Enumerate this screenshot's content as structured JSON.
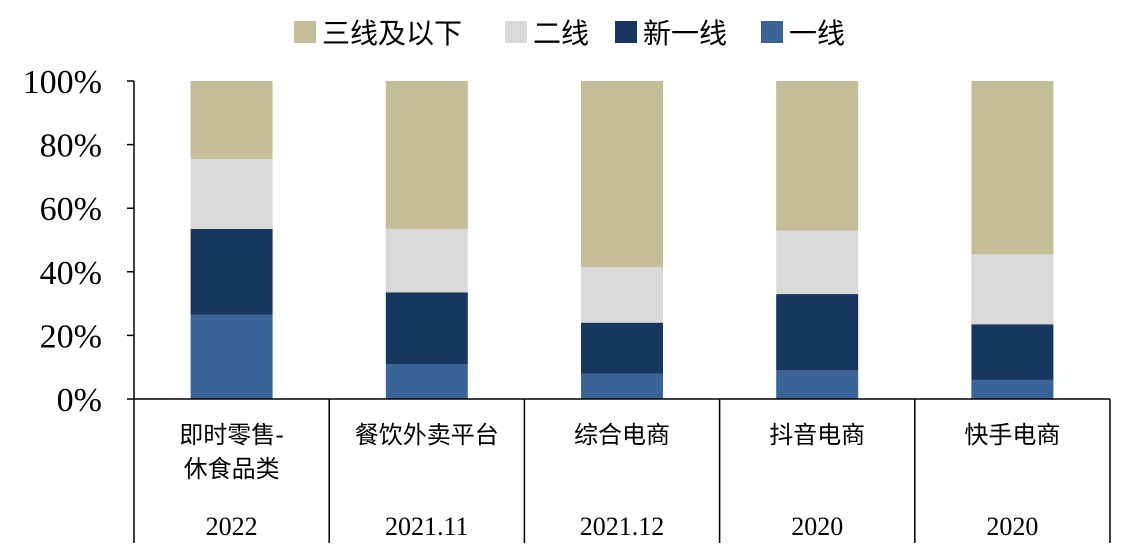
{
  "chart_data": {
    "type": "bar",
    "stacked": true,
    "percent": true,
    "ylim": [
      0,
      100
    ],
    "y_ticks": [
      "0%",
      "20%",
      "40%",
      "60%",
      "80%",
      "100%"
    ],
    "categories": [
      {
        "label_lines": [
          "即时零售-",
          "休食品类"
        ],
        "year": "2022"
      },
      {
        "label_lines": [
          "餐饮外卖平台"
        ],
        "year": "2021.11"
      },
      {
        "label_lines": [
          "综合电商"
        ],
        "year": "2021.12"
      },
      {
        "label_lines": [
          "抖音电商"
        ],
        "year": "2020"
      },
      {
        "label_lines": [
          "快手电商"
        ],
        "year": "2020"
      }
    ],
    "series": [
      {
        "name": "一线",
        "color": "#3a6398",
        "values": [
          26.5,
          11,
          8,
          9,
          6
        ]
      },
      {
        "name": "新一线",
        "color": "#17375e",
        "values": [
          27,
          22.5,
          16,
          24,
          17.5
        ]
      },
      {
        "name": "二线",
        "color": "#d9d9d9",
        "values": [
          22,
          20,
          17.5,
          20,
          22
        ]
      },
      {
        "name": "三线及以下",
        "color": "#c4bd97",
        "values": [
          24.5,
          46.5,
          58.5,
          47,
          54.5
        ]
      }
    ],
    "legend_order": [
      "三线及以下",
      "二线",
      "新一线",
      "一线"
    ],
    "legend_position": "top",
    "grid": false
  }
}
